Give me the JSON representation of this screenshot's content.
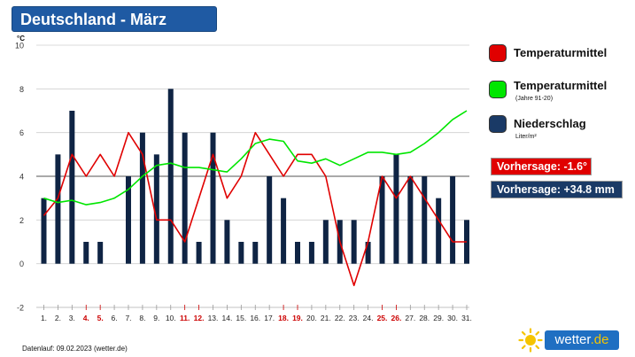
{
  "title": "Deutschland - März",
  "footer": "Datenlauf: 09.02.2023 (wetter.de)",
  "logo": {
    "text": "wetter",
    "suffix": ".de"
  },
  "legend": {
    "temp": {
      "label": "Temperaturmittel",
      "color": "#e00000"
    },
    "clim": {
      "label": "Temperaturmittel",
      "sub": "(Jahre 91-20)",
      "color": "#00e600"
    },
    "rain": {
      "label": "Niederschlag",
      "sub": "Liter/m²",
      "color": "#1a3a66"
    }
  },
  "forecast": {
    "temp": {
      "text": "Vorhersage: -1.6°",
      "color": "#e00000"
    },
    "rain": {
      "text": "Vorhersage: +34.8 mm",
      "color": "#1a3a66"
    }
  },
  "chart_data": {
    "type": "bar+line",
    "title": "Deutschland - März",
    "ylabel": "°C",
    "ylim": [
      -2,
      10
    ],
    "yticks": [
      -2,
      0,
      2,
      4,
      6,
      8,
      10
    ],
    "categories": [
      "1.",
      "2.",
      "3.",
      "4.",
      "5.",
      "6.",
      "7.",
      "8.",
      "9.",
      "10.",
      "11.",
      "12.",
      "13.",
      "14.",
      "15.",
      "16.",
      "17.",
      "18.",
      "19.",
      "20.",
      "21.",
      "22.",
      "23.",
      "24.",
      "25.",
      "26.",
      "27.",
      "28.",
      "29.",
      "30.",
      "31."
    ],
    "weekend_days": [
      "4.",
      "5.",
      "11.",
      "12.",
      "18.",
      "19.",
      "25.",
      "26."
    ],
    "weekend_color": "#cc0000",
    "series": [
      {
        "name": "Niederschlag",
        "kind": "bar",
        "color": "#0f2444",
        "values": [
          3,
          5,
          7,
          1,
          1,
          0,
          4,
          6,
          5,
          8,
          6,
          1,
          6,
          2,
          1,
          1,
          4,
          3,
          1,
          1,
          2,
          2,
          2,
          1,
          4,
          5,
          4,
          4,
          3,
          4,
          2
        ]
      },
      {
        "name": "Temperaturmittel",
        "kind": "line",
        "color": "#e00000",
        "values": [
          2.2,
          3.0,
          5.0,
          4.0,
          5.0,
          4.0,
          6.0,
          5.0,
          2.0,
          2.0,
          1.0,
          3.0,
          5.0,
          3.0,
          4.0,
          6.0,
          5.0,
          4.0,
          5.0,
          5.0,
          4.0,
          1.0,
          -1.0,
          1.0,
          4.0,
          3.0,
          4.0,
          3.0,
          2.0,
          1.0,
          1.0
        ]
      },
      {
        "name": "Temperaturmittel (Jahre 91-20)",
        "kind": "line",
        "color": "#00e600",
        "values": [
          3.0,
          2.8,
          2.9,
          2.7,
          2.8,
          3.0,
          3.4,
          4.0,
          4.5,
          4.6,
          4.4,
          4.4,
          4.3,
          4.2,
          4.8,
          5.5,
          5.7,
          5.6,
          4.7,
          4.6,
          4.8,
          4.5,
          4.8,
          5.1,
          5.1,
          5.0,
          5.1,
          5.5,
          6.0,
          6.6,
          7.0
        ]
      }
    ]
  }
}
